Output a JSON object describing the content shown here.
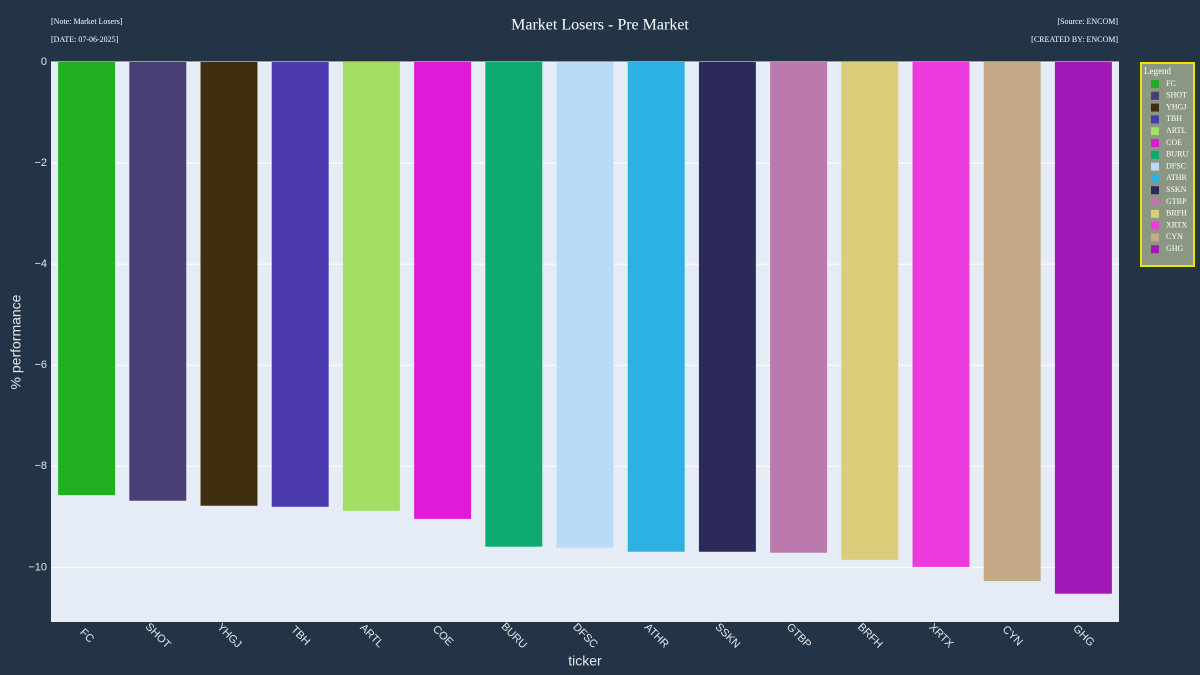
{
  "chart_data": {
    "type": "bar",
    "title": "Market Losers - Pre Market",
    "note": "[Note: Market Losers]",
    "date": "[DATE: 07-06-2025]",
    "source": "[Source: ENCOM]",
    "created_by": "[CREATED BY: ENCOM]",
    "x_label": "ticker",
    "y_label": "% performance",
    "legend_title": "Legend",
    "legend_position": "right",
    "categories": [
      "FC",
      "SHOT",
      "YHGJ",
      "TBH",
      "ARTL",
      "COE",
      "BURU",
      "DFSC",
      "ATHR",
      "SSKN",
      "GTBP",
      "BRFH",
      "XRTX",
      "CYN",
      "GHG"
    ],
    "values": [
      -8.57,
      -8.68,
      -8.78,
      -8.8,
      -8.88,
      -9.04,
      -9.59,
      -9.61,
      -9.69,
      -9.69,
      -9.71,
      -9.85,
      -9.99,
      -10.27,
      -10.52
    ],
    "colors": [
      "#1faf1f",
      "#4a3f74",
      "#3f2f10",
      "#4a3aad",
      "#a3df62",
      "#e01bd8",
      "#0dab72",
      "#b8dcf7",
      "#2db0e2",
      "#2c2a5b",
      "#ba7aad",
      "#dccd7a",
      "#ec3bdc",
      "#c6a986",
      "#a018b8"
    ],
    "ylim": [
      -11.08,
      0
    ],
    "yticks": [
      0,
      {
        "value": -2,
        "label": "−2"
      },
      {
        "value": -4,
        "label": "−4"
      },
      {
        "value": -6,
        "label": "−6"
      },
      {
        "value": -8,
        "label": "−8"
      },
      {
        "value": -10,
        "label": "−10"
      }
    ],
    "grid": true
  }
}
